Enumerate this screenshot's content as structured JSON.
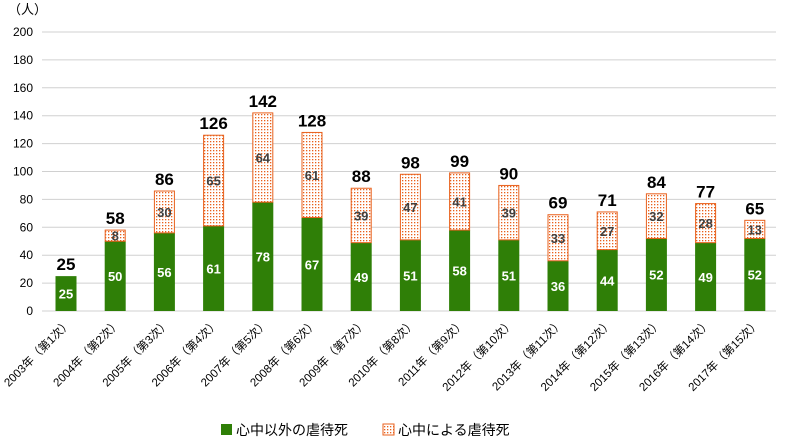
{
  "chart_data": {
    "type": "bar",
    "stacked": true,
    "ylabel": "（人）",
    "ylim": [
      0,
      200
    ],
    "yticks": [
      0,
      20,
      40,
      60,
      80,
      100,
      120,
      140,
      160,
      180,
      200
    ],
    "grid": true,
    "legend_position": "bottom",
    "categories": [
      "2003年（第1次）",
      "2004年（第2次）",
      "2005年（第3次）",
      "2006年（第4次）",
      "2007年（第5次）",
      "2008年（第6次）",
      "2009年（第7次）",
      "2010年（第8次）",
      "2011年（第9次）",
      "2012年（第10次）",
      "2013年（第11次）",
      "2014年（第12次）",
      "2015年（第13次）",
      "2016年（第14次）",
      "2017年（第15次）"
    ],
    "series": [
      {
        "name": "心中以外の虐待死",
        "color": "#2f7f07",
        "values": [
          25,
          50,
          56,
          61,
          78,
          67,
          49,
          51,
          58,
          51,
          36,
          44,
          52,
          49,
          52
        ]
      },
      {
        "name": "心中による虐待死",
        "color": "#e8601c",
        "values": [
          0,
          8,
          30,
          65,
          64,
          61,
          39,
          47,
          41,
          39,
          33,
          27,
          32,
          28,
          13
        ]
      }
    ],
    "totals": [
      25,
      58,
      86,
      126,
      142,
      128,
      88,
      98,
      99,
      90,
      69,
      71,
      84,
      77,
      65
    ]
  }
}
